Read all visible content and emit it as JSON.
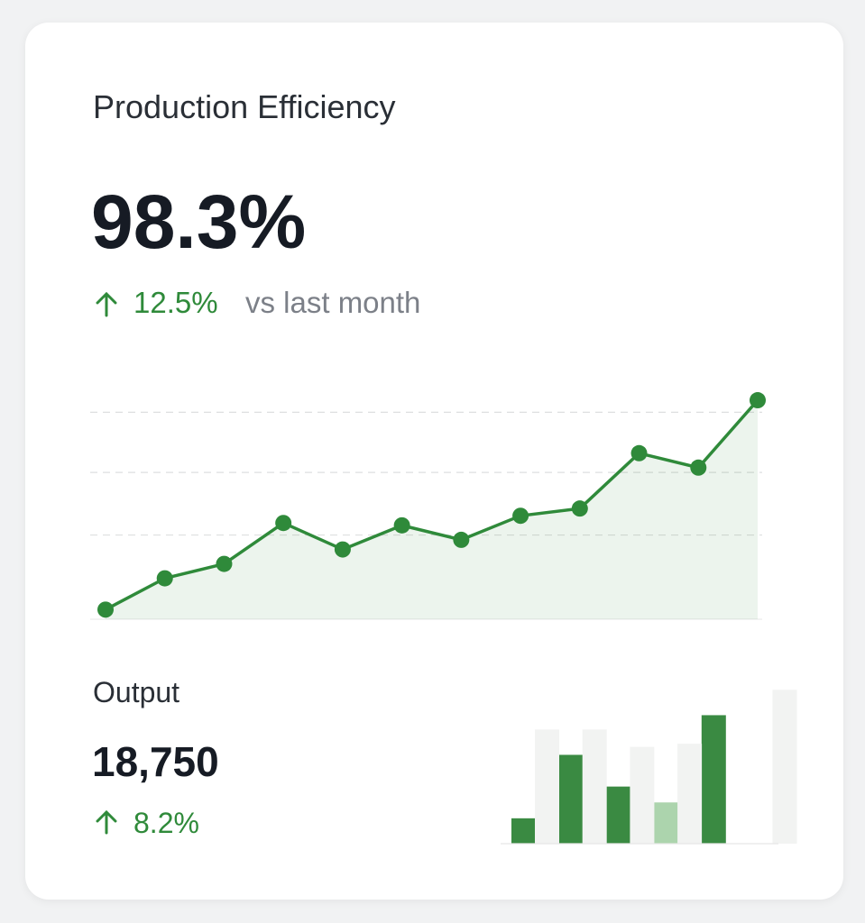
{
  "card": {
    "title": "Production Efficiency",
    "value": "98.3%",
    "change": "12.5%",
    "comparison": "vs last month"
  },
  "output": {
    "label": "Output",
    "value": "18,750",
    "change": "8.2%"
  },
  "chart_data": [
    {
      "type": "line",
      "categories": [
        null,
        null,
        null,
        null,
        null,
        null,
        null,
        null,
        null,
        null,
        null,
        null
      ],
      "values": [
        4,
        17,
        23,
        40,
        29,
        39,
        33,
        43,
        46,
        69,
        63,
        91
      ],
      "color": "#2f8a3a",
      "ylim": [
        0,
        100
      ],
      "yticks": [
        35,
        61,
        86
      ],
      "grid": true
    },
    {
      "type": "bar",
      "categories": [
        null,
        null,
        null,
        null,
        null,
        null
      ],
      "series": [
        {
          "color": "#3a8a42",
          "colors": [
            "#3a8a42",
            "#3a8a42",
            "#3a8a42",
            "#acd4ad",
            "#3a8a42",
            "#3a8a42"
          ],
          "values": [
            16,
            56,
            36,
            26,
            81,
            null
          ]
        },
        {
          "color": "#f2f3f2",
          "values": [
            72,
            72,
            61,
            63,
            null,
            97
          ]
        }
      ],
      "ylim": [
        0,
        100
      ]
    }
  ]
}
